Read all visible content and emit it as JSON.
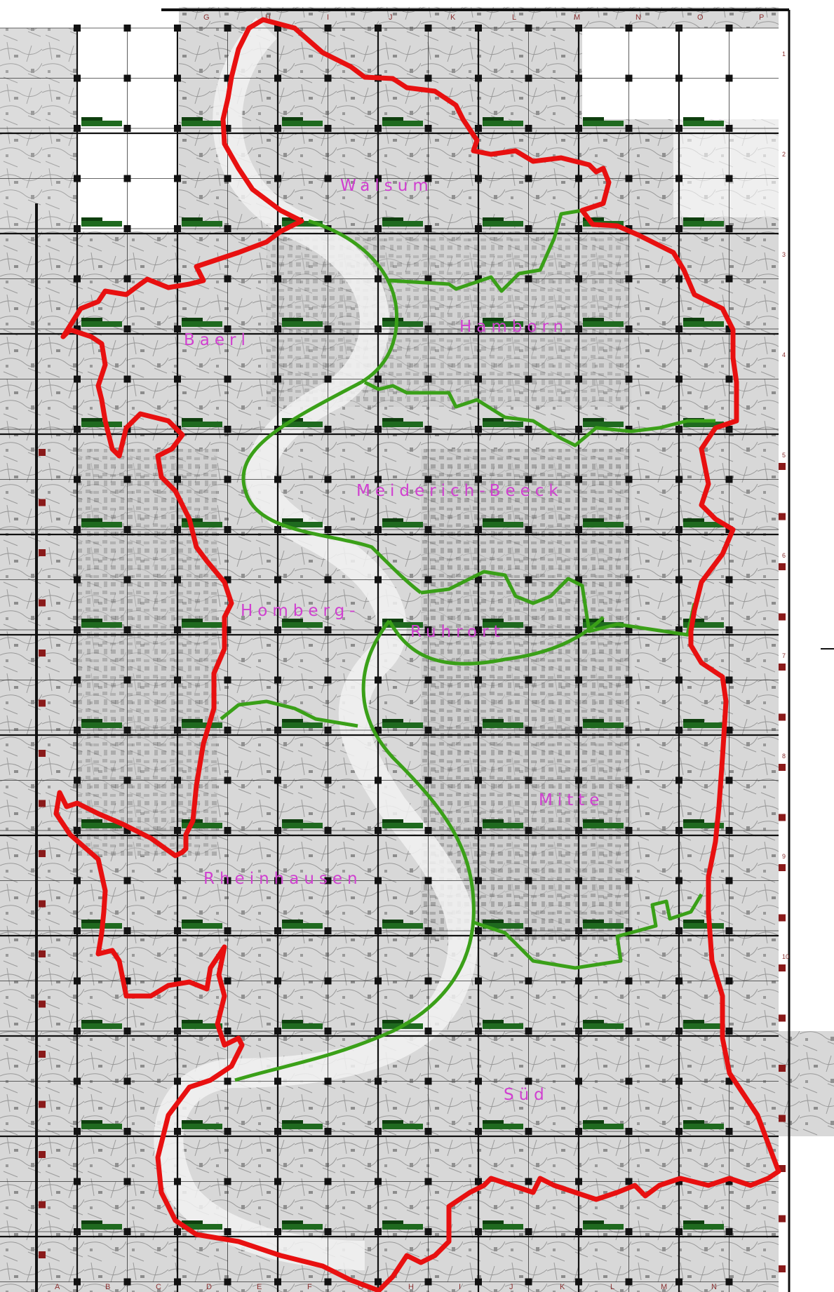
{
  "map": {
    "districts": [
      {
        "id": "walsum",
        "label": "Walsum"
      },
      {
        "id": "baerl",
        "label": "Baerl"
      },
      {
        "id": "hamborn",
        "label": "Hamborn"
      },
      {
        "id": "meiderich-beeck",
        "label": "Meiderich-Beeck"
      },
      {
        "id": "homberg-ruhrort",
        "label_line1": "Homberg-",
        "label_line2": "Ruhrort"
      },
      {
        "id": "mitte",
        "label": "Mitte"
      },
      {
        "id": "rheinhausen",
        "label": "Rheinhausen"
      },
      {
        "id": "sued",
        "label": "Süd"
      }
    ],
    "grid": {
      "column_letters_top": [
        "G",
        "H",
        "I",
        "J",
        "K",
        "L",
        "M",
        "N",
        "O",
        "P"
      ],
      "column_letters_bottom": [
        "A",
        "B",
        "C",
        "D",
        "E",
        "F",
        "G",
        "H",
        "I",
        "J",
        "K",
        "L",
        "M",
        "N"
      ],
      "row_numbers_right": [
        "1",
        "2",
        "3",
        "4",
        "5",
        "6",
        "7",
        "8",
        "9",
        "10"
      ]
    },
    "colors": {
      "city_boundary": "#e81010",
      "district_boundary": "#3aa018",
      "district_label": "#d040d0",
      "grid_line": "#111111",
      "map_background": "#dcdcdc",
      "sheet_marker": "#1f6a1f",
      "axis_tick": "#8a1a1a"
    }
  }
}
